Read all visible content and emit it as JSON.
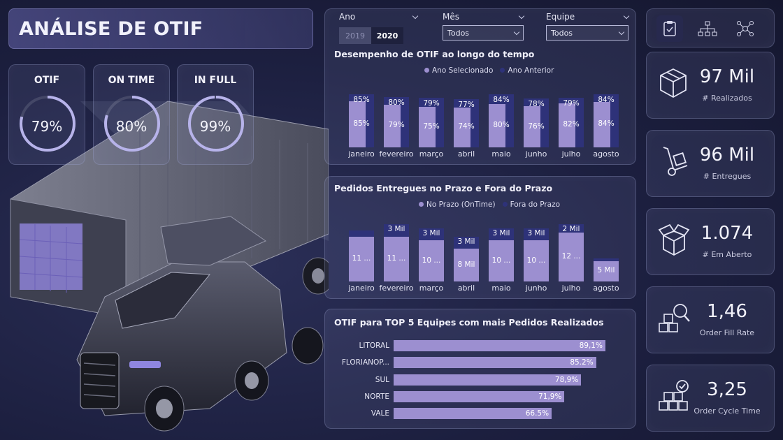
{
  "title": "ANÁLISE DE OTIF",
  "kpis": [
    {
      "label": "OTIF",
      "value": "79%",
      "fraction": 0.79
    },
    {
      "label": "ON TIME",
      "value": "80%",
      "fraction": 0.8
    },
    {
      "label": "IN FULL",
      "value": "99%",
      "fraction": 0.99
    }
  ],
  "filters": {
    "year": {
      "label": "Ano",
      "options": [
        "2019",
        "2020"
      ],
      "selected": "2020"
    },
    "month": {
      "label": "Mês",
      "value": "Todos"
    },
    "team": {
      "label": "Equipe",
      "value": "Todos"
    }
  },
  "chart_data": [
    {
      "type": "bar",
      "title": "Desempenho de OTIF ao longo do tempo",
      "categories": [
        "janeiro",
        "fevereiro",
        "março",
        "abril",
        "maio",
        "junho",
        "julho",
        "agosto"
      ],
      "series": [
        {
          "name": "Ano Selecionado",
          "values": [
            85,
            79,
            75,
            74,
            80,
            76,
            82,
            84
          ],
          "labels": [
            "85%",
            "79%",
            "75%",
            "74%",
            "80%",
            "76%",
            "82%",
            "84%"
          ]
        },
        {
          "name": "Ano Anterior",
          "values": [
            85,
            80,
            79,
            77,
            84,
            78,
            79,
            84
          ],
          "labels": [
            "85%",
            "80%",
            "79%",
            "77%",
            "84%",
            "78%",
            "79%",
            "84%"
          ]
        }
      ],
      "ylim": [
        0,
        100
      ]
    },
    {
      "type": "bar",
      "title": "Pedidos Entregues no Prazo e Fora do Prazo",
      "categories": [
        "janeiro",
        "fevereiro",
        "março",
        "abril",
        "maio",
        "junho",
        "julho",
        "agosto"
      ],
      "series": [
        {
          "name": "No Prazo (OnTime)",
          "values": [
            11000,
            11000,
            10000,
            8000,
            10000,
            10000,
            12000,
            5000
          ],
          "labels": [
            "11 ...",
            "11 ...",
            "10 ...",
            "8 Mil",
            "10 ...",
            "10 ...",
            "12 ...",
            "5 Mil"
          ]
        },
        {
          "name": "Fora do Prazo",
          "values": [
            1500,
            3000,
            3000,
            3000,
            3000,
            3000,
            2000,
            600
          ],
          "labels": [
            "",
            "3 Mil",
            "3 Mil",
            "3 Mil",
            "3 Mil",
            "3 Mil",
            "2 Mil",
            ""
          ]
        }
      ],
      "stacked": true
    },
    {
      "type": "bar",
      "orientation": "horizontal",
      "title": "OTIF para TOP 5 Equipes com mais Pedidos Realizados",
      "categories": [
        "LITORAL",
        "FLORIANOP...",
        "SUL",
        "NORTE",
        "VALE"
      ],
      "values": [
        89.1,
        85.2,
        78.9,
        71.9,
        66.5
      ],
      "labels": [
        "89,1%",
        "85.2%",
        "78,9%",
        "71,9%",
        "66.5%"
      ],
      "xlim": [
        0,
        100
      ]
    }
  ],
  "colors": {
    "lavender": "#9c8fd0",
    "navy": "#2e3279",
    "accent": "#8b7fcf"
  },
  "cards": [
    {
      "value": "97 Mil",
      "label": "# Realizados",
      "icon": "box-icon"
    },
    {
      "value": "96 Mil",
      "label": "# Entregues",
      "icon": "hand-truck-icon"
    },
    {
      "value": "1.074",
      "label": "# Em Aberto",
      "icon": "open-box-icon"
    },
    {
      "value": "1,46",
      "label": "Order Fill Rate",
      "icon": "boxes-search-icon"
    },
    {
      "value": "3,25",
      "label": "Order Cycle Time",
      "icon": "boxes-check-icon"
    }
  ],
  "nav": [
    "clipboard-icon",
    "hierarchy-icon",
    "network-icon"
  ]
}
